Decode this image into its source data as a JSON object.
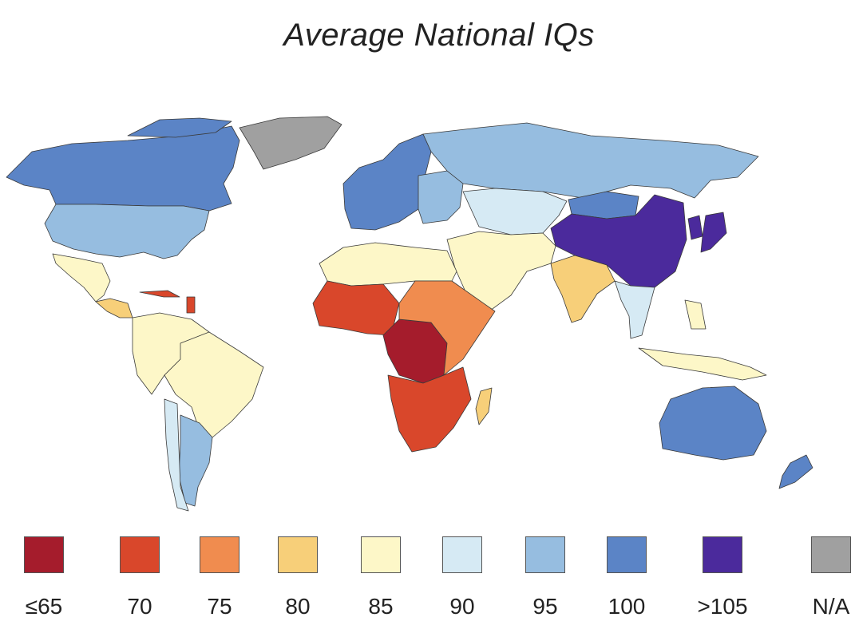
{
  "title": "Average National IQs",
  "map": {
    "type": "choropleth",
    "regions": [
      {
        "name": "Greenland",
        "category": "N/A"
      },
      {
        "name": "Canada",
        "category": "100"
      },
      {
        "name": "United States",
        "category": "95"
      },
      {
        "name": "Mexico",
        "category": "85"
      },
      {
        "name": "Central America",
        "category": "80"
      },
      {
        "name": "Caribbean",
        "category": "70"
      },
      {
        "name": "Colombia / Venezuela / Ecuador / Peru",
        "category": "85"
      },
      {
        "name": "Brazil",
        "category": "85"
      },
      {
        "name": "Argentina",
        "category": "95"
      },
      {
        "name": "Chile",
        "category": "90"
      },
      {
        "name": "Europe",
        "category": "100"
      },
      {
        "name": "Eastern Europe",
        "category": "95"
      },
      {
        "name": "Russia",
        "category": "95"
      },
      {
        "name": "Kazakhstan / Central Asia",
        "category": "90"
      },
      {
        "name": "Mongolia",
        "category": "100"
      },
      {
        "name": "China",
        "category": ">105"
      },
      {
        "name": "Japan",
        "category": ">105"
      },
      {
        "name": "Korea",
        "category": ">105"
      },
      {
        "name": "North Africa",
        "category": "85"
      },
      {
        "name": "Middle East",
        "category": "85"
      },
      {
        "name": "India",
        "category": "80"
      },
      {
        "name": "Southeast Asia",
        "category": "90"
      },
      {
        "name": "Indonesia",
        "category": "85"
      },
      {
        "name": "West Africa",
        "category": "70"
      },
      {
        "name": "Central Africa",
        "category": "≤65"
      },
      {
        "name": "East Africa",
        "category": "75"
      },
      {
        "name": "Southern Africa",
        "category": "70"
      },
      {
        "name": "Madagascar",
        "category": "80"
      },
      {
        "name": "Australia",
        "category": "100"
      },
      {
        "name": "New Zealand",
        "category": "100"
      }
    ]
  },
  "legend": [
    {
      "label": "≤65",
      "color": "#a51c2c"
    },
    {
      "label": "70",
      "color": "#d9472b"
    },
    {
      "label": "75",
      "color": "#f08c4f"
    },
    {
      "label": "80",
      "color": "#f7cf79"
    },
    {
      "label": "85",
      "color": "#fdf7c8"
    },
    {
      "label": "90",
      "color": "#d6eaf4"
    },
    {
      "label": "95",
      "color": "#96bde0"
    },
    {
      "label": "100",
      "color": "#5b84c6"
    },
    {
      "label": ">105",
      "color": "#4b2a9c"
    },
    {
      "label": "N/A",
      "color": "#a0a0a0"
    }
  ]
}
